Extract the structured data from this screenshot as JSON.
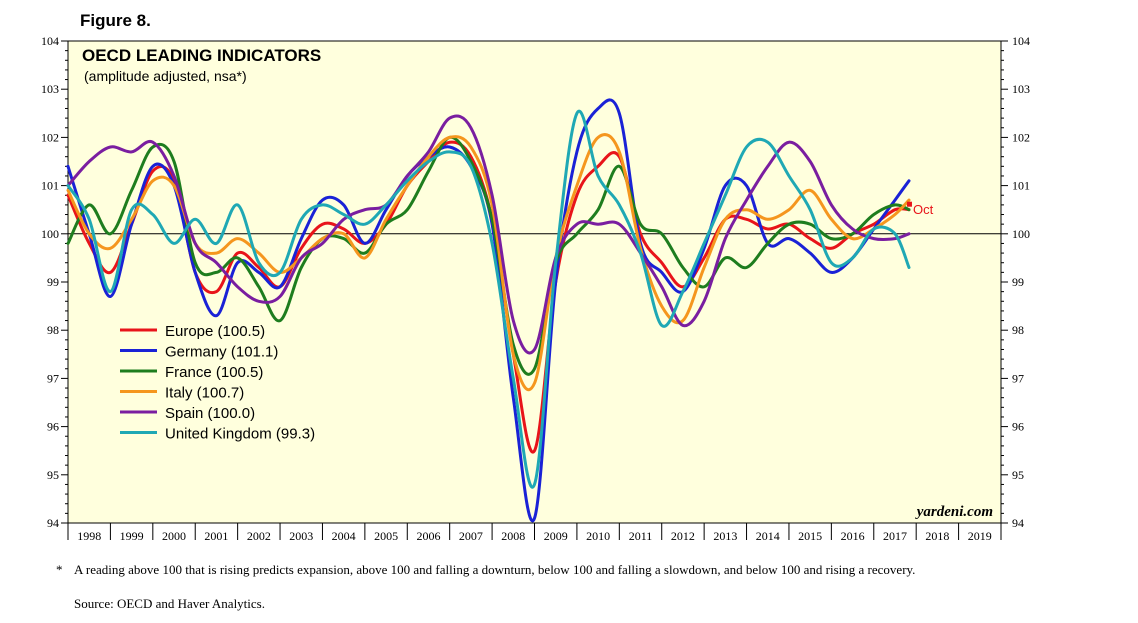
{
  "figure_label": "Figure 8.",
  "footnote": {
    "marker": "*",
    "text": "A reading above 100 that is rising predicts expansion, above 100 and falling a downturn, below 100 and falling a slowdown, and below 100 and rising a recovery."
  },
  "source": "Source: OECD and Haver Analytics.",
  "chart_data": {
    "type": "line",
    "title": "OECD LEADING INDICATORS",
    "subtitle": "(amplitude adjusted, nsa*)",
    "watermark": "yardeni.com",
    "annotation": "Oct",
    "ylim": [
      94,
      104
    ],
    "yticks": [
      94,
      95,
      96,
      97,
      98,
      99,
      100,
      101,
      102,
      103,
      104
    ],
    "xlim": [
      1998,
      2020
    ],
    "xtick_labels": [
      "1998",
      "1999",
      "2000",
      "2001",
      "2002",
      "2003",
      "2004",
      "2005",
      "2006",
      "2007",
      "2008",
      "2009",
      "2010",
      "2011",
      "2012",
      "2013",
      "2014",
      "2015",
      "2016",
      "2017",
      "2018",
      "2019"
    ],
    "reference_line": 100,
    "series": [
      {
        "name": "Europe",
        "legend": "Europe (100.5)",
        "color": "#e8141a",
        "x": [
          1998,
          1998.5,
          1999,
          1999.5,
          2000,
          2000.5,
          2001,
          2001.5,
          2002,
          2002.5,
          2003,
          2003.5,
          2004,
          2004.5,
          2005,
          2005.5,
          2006,
          2006.5,
          2007,
          2007.5,
          2008,
          2008.5,
          2009,
          2009.5,
          2010,
          2010.5,
          2011,
          2011.5,
          2012,
          2012.5,
          2013,
          2013.5,
          2014,
          2014.5,
          2015,
          2015.5,
          2016,
          2016.5,
          2017,
          2017.5,
          2017.83
        ],
        "y": [
          100.8,
          99.8,
          99.2,
          100.2,
          101.3,
          101.1,
          99.2,
          98.8,
          99.6,
          99.3,
          98.9,
          99.7,
          100.2,
          100.1,
          99.8,
          100.2,
          101.0,
          101.5,
          101.9,
          101.6,
          100.3,
          97.5,
          95.5,
          99.0,
          100.8,
          101.4,
          101.6,
          100.0,
          99.4,
          98.9,
          99.5,
          100.3,
          100.3,
          100.1,
          100.2,
          99.9,
          99.7,
          100.0,
          100.2,
          100.5,
          100.5
        ]
      },
      {
        "name": "Germany",
        "legend": "Germany (101.1)",
        "color": "#1a22d6",
        "x": [
          1998,
          1998.5,
          1999,
          1999.5,
          2000,
          2000.5,
          2001,
          2001.5,
          2002,
          2002.5,
          2003,
          2003.5,
          2004,
          2004.5,
          2005,
          2005.5,
          2006,
          2006.5,
          2007,
          2007.5,
          2008,
          2008.5,
          2009,
          2009.5,
          2010,
          2010.5,
          2011,
          2011.5,
          2012,
          2012.5,
          2013,
          2013.5,
          2014,
          2014.5,
          2015,
          2015.5,
          2016,
          2016.5,
          2017,
          2017.5,
          2017.83
        ],
        "y": [
          101.4,
          100.0,
          98.7,
          100.2,
          101.4,
          101.0,
          99.2,
          98.3,
          99.4,
          99.2,
          98.9,
          99.9,
          100.7,
          100.6,
          99.8,
          100.5,
          101.2,
          101.6,
          101.8,
          101.4,
          100.2,
          96.6,
          94.1,
          99.0,
          101.7,
          102.6,
          102.5,
          99.8,
          99.2,
          98.8,
          99.7,
          101.0,
          101.0,
          99.8,
          99.9,
          99.6,
          99.2,
          99.5,
          100.1,
          100.7,
          101.1
        ]
      },
      {
        "name": "France",
        "legend": "France (100.5)",
        "color": "#1e7d1e",
        "x": [
          1998,
          1998.5,
          1999,
          1999.5,
          2000,
          2000.5,
          2001,
          2001.5,
          2002,
          2002.5,
          2003,
          2003.5,
          2004,
          2004.5,
          2005,
          2005.5,
          2006,
          2006.5,
          2007,
          2007.5,
          2008,
          2008.5,
          2009,
          2009.5,
          2010,
          2010.5,
          2011,
          2011.5,
          2012,
          2012.5,
          2013,
          2013.5,
          2014,
          2014.5,
          2015,
          2015.5,
          2016,
          2016.5,
          2017,
          2017.5,
          2017.83
        ],
        "y": [
          99.8,
          100.6,
          100.0,
          100.9,
          101.8,
          101.5,
          99.4,
          99.2,
          99.5,
          98.9,
          98.2,
          99.3,
          99.9,
          99.9,
          99.6,
          100.2,
          100.5,
          101.3,
          102.0,
          101.5,
          100.3,
          97.7,
          97.2,
          99.4,
          100.0,
          100.5,
          101.4,
          100.2,
          100.0,
          99.3,
          98.9,
          99.5,
          99.3,
          99.8,
          100.2,
          100.2,
          99.9,
          100.0,
          100.4,
          100.6,
          100.5
        ]
      },
      {
        "name": "Italy",
        "legend": "Italy (100.7)",
        "color": "#f5961e",
        "x": [
          1998,
          1998.5,
          1999,
          1999.5,
          2000,
          2000.5,
          2001,
          2001.5,
          2002,
          2002.5,
          2003,
          2003.5,
          2004,
          2004.5,
          2005,
          2005.5,
          2006,
          2006.5,
          2007,
          2007.5,
          2008,
          2008.5,
          2009,
          2009.5,
          2010,
          2010.5,
          2011,
          2011.5,
          2012,
          2012.5,
          2013,
          2013.5,
          2014,
          2014.5,
          2015,
          2015.5,
          2016,
          2016.5,
          2017,
          2017.5,
          2017.83
        ],
        "y": [
          100.9,
          100.0,
          99.7,
          100.3,
          101.1,
          101.0,
          99.8,
          99.6,
          99.9,
          99.6,
          99.2,
          99.5,
          99.9,
          100.0,
          99.5,
          100.3,
          101.0,
          101.6,
          102.0,
          101.8,
          100.6,
          97.5,
          96.9,
          99.5,
          101.0,
          102.0,
          101.7,
          99.7,
          98.5,
          98.2,
          99.3,
          100.3,
          100.5,
          100.3,
          100.5,
          100.9,
          100.3,
          99.9,
          100.1,
          100.4,
          100.7
        ]
      },
      {
        "name": "Spain",
        "legend": "Spain (100.0)",
        "color": "#7a1ea0",
        "x": [
          1998,
          1998.5,
          1999,
          1999.5,
          2000,
          2000.5,
          2001,
          2001.5,
          2002,
          2002.5,
          2003,
          2003.5,
          2004,
          2004.5,
          2005,
          2005.5,
          2006,
          2006.5,
          2007,
          2007.5,
          2008,
          2008.5,
          2009,
          2009.5,
          2010,
          2010.5,
          2011,
          2011.5,
          2012,
          2012.5,
          2013,
          2013.5,
          2014,
          2014.5,
          2015,
          2015.5,
          2016,
          2016.5,
          2017,
          2017.5,
          2017.83
        ],
        "y": [
          101.0,
          101.5,
          101.8,
          101.7,
          101.9,
          101.2,
          99.8,
          99.4,
          98.9,
          98.6,
          98.7,
          99.5,
          99.8,
          100.3,
          100.5,
          100.6,
          101.2,
          101.7,
          102.4,
          102.2,
          100.8,
          98.2,
          97.6,
          99.5,
          100.2,
          100.2,
          100.2,
          99.6,
          98.9,
          98.1,
          98.6,
          99.9,
          100.7,
          101.4,
          101.9,
          101.5,
          100.6,
          100.1,
          99.9,
          99.9,
          100.0
        ]
      },
      {
        "name": "United Kingdom",
        "legend": "United Kingdom (99.3)",
        "color": "#1fa8b4",
        "x": [
          1998,
          1998.5,
          1999,
          1999.5,
          2000,
          2000.5,
          2001,
          2001.5,
          2002,
          2002.5,
          2003,
          2003.5,
          2004,
          2004.5,
          2005,
          2005.5,
          2006,
          2006.5,
          2007,
          2007.5,
          2008,
          2008.5,
          2009,
          2009.5,
          2010,
          2010.5,
          2011,
          2011.5,
          2012,
          2012.5,
          2013,
          2013.5,
          2014,
          2014.5,
          2015,
          2015.5,
          2016,
          2016.5,
          2017,
          2017.5,
          2017.83
        ],
        "y": [
          101.0,
          100.3,
          98.8,
          100.5,
          100.4,
          99.8,
          100.3,
          99.8,
          100.6,
          99.4,
          99.2,
          100.3,
          100.6,
          100.4,
          100.2,
          100.6,
          101.1,
          101.5,
          101.7,
          101.4,
          99.8,
          97.0,
          94.8,
          99.4,
          102.5,
          101.2,
          100.6,
          99.6,
          98.1,
          98.8,
          99.8,
          100.8,
          101.8,
          101.9,
          101.2,
          100.5,
          99.4,
          99.5,
          100.1,
          100.0,
          99.3
        ]
      }
    ]
  }
}
